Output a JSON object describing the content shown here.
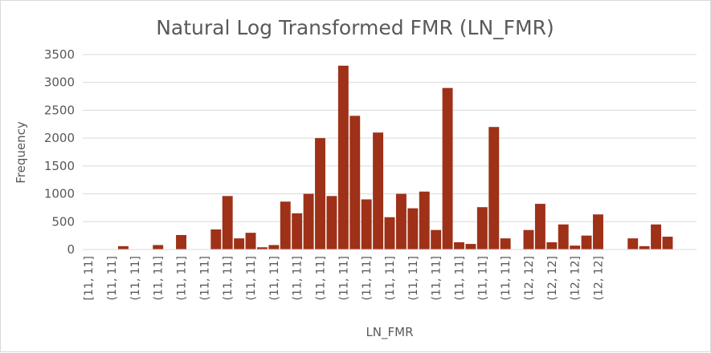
{
  "chart_data": {
    "type": "bar",
    "title": "Natural Log Transformed FMR (LN_FMR)",
    "xlabel": "LN_FMR",
    "ylabel": "Frequency",
    "ylim": [
      0,
      3500
    ],
    "yticks": [
      "0",
      "500",
      "1000",
      "1500",
      "2000",
      "2500",
      "3000",
      "3500"
    ],
    "grid": true,
    "legend": "none",
    "bar_color": "#9e3118",
    "values": [
      0,
      0,
      0,
      60,
      0,
      0,
      80,
      0,
      260,
      0,
      0,
      360,
      960,
      200,
      300,
      40,
      80,
      860,
      650,
      1000,
      2000,
      960,
      3300,
      2400,
      900,
      2100,
      580,
      1000,
      740,
      1040,
      350,
      2900,
      130,
      100,
      760,
      2200,
      200,
      0,
      350,
      820,
      130,
      450,
      70,
      250,
      630,
      0,
      0,
      200,
      60,
      450,
      230,
      0,
      0
    ],
    "x_tick_labels": [
      "[11, 11]",
      "(11, 11]",
      "(11, 11]",
      "(11, 11]",
      "(11, 11]",
      "(11, 11]",
      "(11, 11]",
      "(11, 11]",
      "(11, 11]",
      "(11, 11]",
      "(11, 11]",
      "(11, 11]",
      "(11, 11]",
      "(11, 11]",
      "(11, 11]",
      "(11, 11]",
      "(11, 11]",
      "(11, 11]",
      "(11, 11]",
      "(12, 12]",
      "(12, 12]",
      "(12, 12]",
      "(12, 12]"
    ]
  }
}
